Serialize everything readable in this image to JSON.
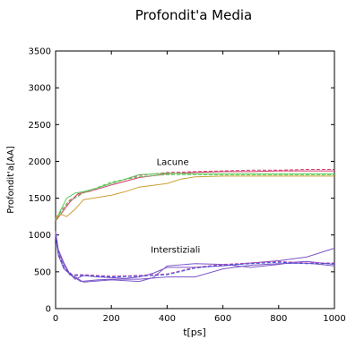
{
  "chart_data": {
    "type": "line",
    "title": "Profondit'a Media",
    "xlabel": "t[ps]",
    "ylabel": "Profondit'a[AA]",
    "xlim": [
      0,
      1000
    ],
    "ylim": [
      0,
      3500
    ],
    "xticks": [
      0,
      200,
      400,
      600,
      800,
      1000
    ],
    "yticks": [
      0,
      500,
      1000,
      1500,
      2000,
      2500,
      3000,
      3500
    ],
    "grid": false,
    "legend": "none",
    "annotations": [
      {
        "text": "Lacune",
        "x": 420,
        "y": 1950
      },
      {
        "text": "Interstiziali",
        "x": 430,
        "y": 760
      }
    ],
    "series": [
      {
        "color": "#d63d6b",
        "dashed": false,
        "x": [
          0,
          20,
          50,
          80,
          120,
          200,
          300,
          400,
          500,
          600,
          700,
          800,
          900,
          1000
        ],
        "y": [
          1190,
          1290,
          1440,
          1560,
          1590,
          1680,
          1780,
          1830,
          1850,
          1860,
          1860,
          1870,
          1870,
          1870
        ]
      },
      {
        "color": "#d63d6b",
        "dashed": true,
        "x": [
          0,
          50,
          100,
          200,
          300,
          400,
          500,
          600,
          700,
          800,
          900,
          1000
        ],
        "y": [
          1230,
          1470,
          1580,
          1700,
          1810,
          1850,
          1860,
          1870,
          1880,
          1880,
          1890,
          1890
        ]
      },
      {
        "color": "#55cc55",
        "dashed": false,
        "x": [
          0,
          20,
          40,
          70,
          100,
          150,
          200,
          250,
          300,
          400,
          500,
          600,
          700,
          800,
          900,
          1000
        ],
        "y": [
          1200,
          1350,
          1500,
          1570,
          1590,
          1640,
          1700,
          1760,
          1820,
          1840,
          1830,
          1830,
          1830,
          1830,
          1830,
          1830
        ]
      },
      {
        "color": "#55cc55",
        "dashed": true,
        "x": [
          0,
          50,
          100,
          200,
          300,
          400,
          500,
          600,
          700,
          800,
          900,
          1000
        ],
        "y": [
          1220,
          1460,
          1570,
          1720,
          1790,
          1820,
          1820,
          1820,
          1820,
          1820,
          1820,
          1820
        ]
      },
      {
        "color": "#c8a032",
        "dashed": false,
        "x": [
          0,
          20,
          40,
          70,
          100,
          150,
          200,
          250,
          300,
          400,
          450,
          500,
          600,
          700,
          800,
          900,
          1000
        ],
        "y": [
          1240,
          1280,
          1250,
          1350,
          1480,
          1510,
          1540,
          1590,
          1650,
          1700,
          1760,
          1790,
          1800,
          1800,
          1800,
          1800,
          1800
        ]
      },
      {
        "color": "#7b55c8",
        "dashed": false,
        "x": [
          0,
          10,
          30,
          50,
          70,
          100,
          150,
          200,
          250,
          300,
          350,
          400,
          500,
          600,
          700,
          800,
          900,
          1000
        ],
        "y": [
          1050,
          800,
          620,
          480,
          400,
          450,
          430,
          420,
          410,
          430,
          480,
          560,
          560,
          580,
          620,
          650,
          700,
          820
        ]
      },
      {
        "color": "#7b55c8",
        "dashed": false,
        "x": [
          0,
          10,
          30,
          50,
          70,
          100,
          200,
          300,
          350,
          400,
          500,
          600,
          700,
          800,
          850,
          900,
          1000
        ],
        "y": [
          1030,
          780,
          600,
          460,
          430,
          360,
          390,
          370,
          420,
          580,
          610,
          600,
          560,
          600,
          630,
          640,
          600
        ]
      },
      {
        "color": "#7b55c8",
        "dashed": false,
        "x": [
          0,
          10,
          30,
          60,
          90,
          150,
          200,
          300,
          400,
          500,
          600,
          700,
          800,
          900,
          1000
        ],
        "y": [
          1000,
          720,
          540,
          440,
          370,
          390,
          400,
          400,
          430,
          430,
          540,
          590,
          610,
          620,
          580
        ]
      },
      {
        "color": "#cc44aa",
        "dashed": true,
        "x": [
          0,
          10,
          30,
          60,
          100,
          200,
          300,
          400,
          500,
          600,
          700,
          800,
          900,
          1000
        ],
        "y": [
          1020,
          760,
          560,
          460,
          460,
          440,
          450,
          470,
          560,
          600,
          620,
          640,
          620,
          620
        ]
      },
      {
        "color": "#3355dd",
        "dashed": true,
        "x": [
          0,
          10,
          30,
          60,
          100,
          200,
          300,
          400,
          500,
          600,
          700,
          800,
          900,
          1000
        ],
        "y": [
          1010,
          740,
          550,
          450,
          450,
          430,
          440,
          460,
          550,
          590,
          610,
          630,
          610,
          610
        ]
      }
    ]
  }
}
